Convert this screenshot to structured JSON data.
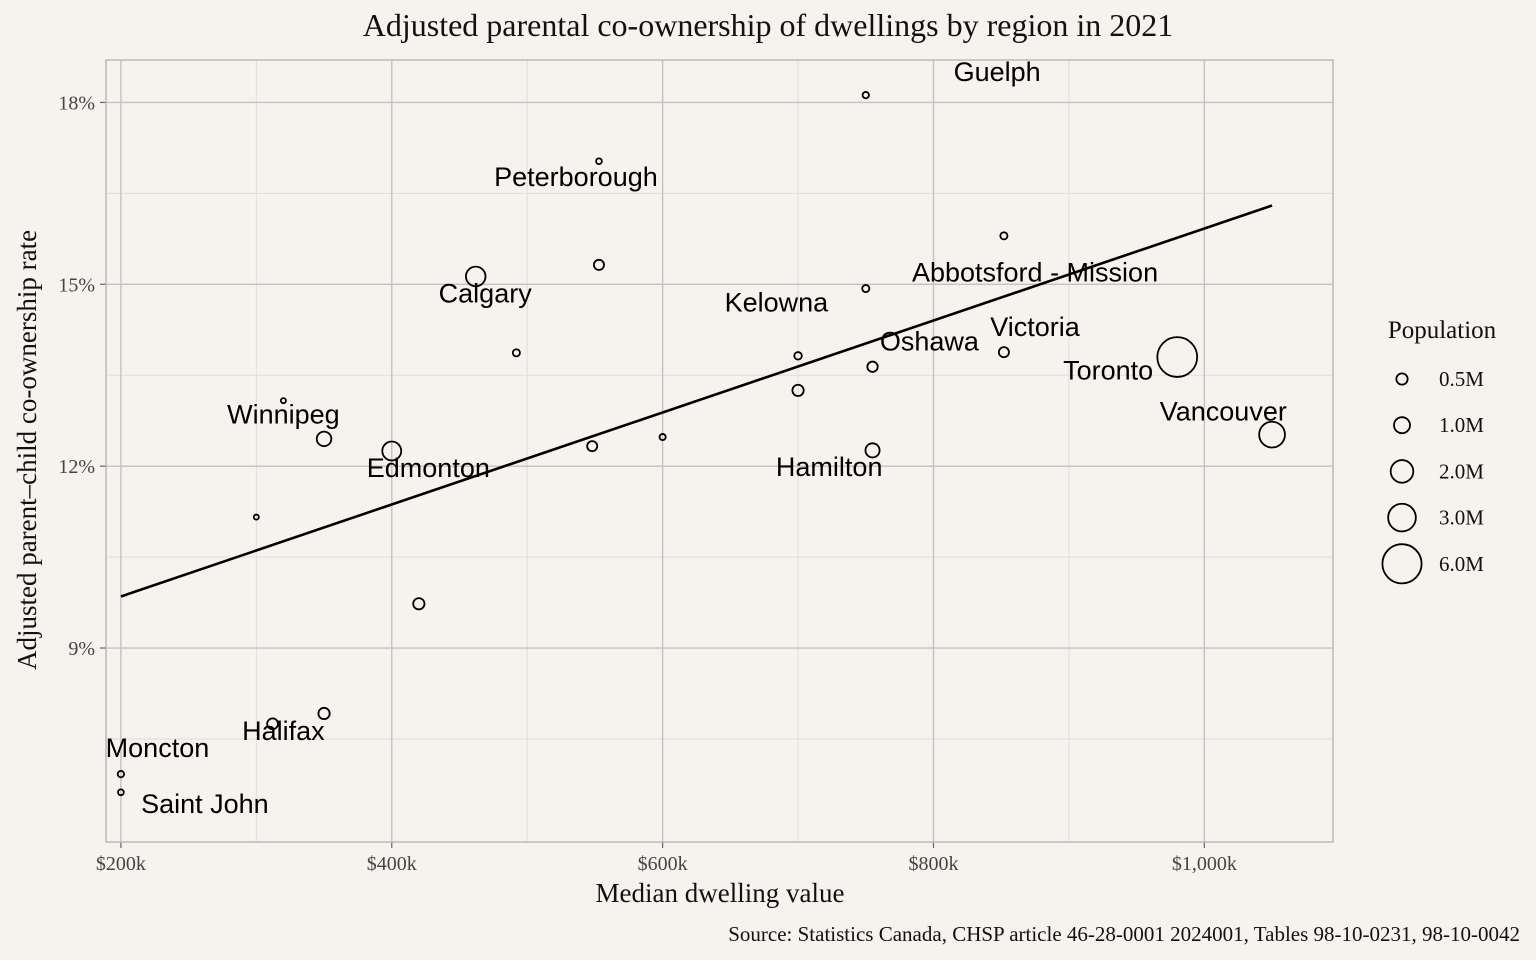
{
  "chart_data": {
    "type": "scatter",
    "title": "Adjusted parental co-ownership of dwellings by region in 2021",
    "xlabel": "Median dwelling value",
    "ylabel": "Adjusted parent–child co-ownership rate",
    "caption": "Source: Statistics Canada, CHSP article 46-28-0001 2024001, Tables 98-10-0231, 98-10-0042",
    "xlim": [
      189000,
      1095000
    ],
    "ylim": [
      5.8,
      18.7
    ],
    "x_ticks": [
      {
        "value": 200000,
        "label": "$200k"
      },
      {
        "value": 400000,
        "label": "$400k"
      },
      {
        "value": 600000,
        "label": "$600k"
      },
      {
        "value": 800000,
        "label": "$800k"
      },
      {
        "value": 1000000,
        "label": "$1,000k"
      }
    ],
    "y_ticks": [
      {
        "value": 9,
        "label": "9%"
      },
      {
        "value": 12,
        "label": "12%"
      },
      {
        "value": 15,
        "label": "15%"
      },
      {
        "value": 18,
        "label": "18%"
      }
    ],
    "grid": true,
    "legend": {
      "title": "Population",
      "position": "right",
      "entries": [
        {
          "label": "0.5M",
          "value": 0.5
        },
        {
          "label": "1.0M",
          "value": 1.0
        },
        {
          "label": "2.0M",
          "value": 2.0
        },
        {
          "label": "3.0M",
          "value": 3.0
        },
        {
          "label": "6.0M",
          "value": 6.0
        }
      ]
    },
    "trendline": {
      "x": [
        200000,
        1050000
      ],
      "y": [
        9.85,
        16.3
      ]
    },
    "points": [
      {
        "name": "Guelph",
        "x": 750000,
        "y": 18.12,
        "pop": 0.16
      },
      {
        "name": "Peterborough",
        "x": 553000,
        "y": 17.03,
        "pop": 0.13
      },
      {
        "name": "",
        "x": 852000,
        "y": 15.8,
        "pop": 0.2
      },
      {
        "name": "Abbotsford - Mission",
        "x": 750000,
        "y": 14.93,
        "pop": 0.2
      },
      {
        "name": "Calgary",
        "x": 462000,
        "y": 15.13,
        "pop": 1.5
      },
      {
        "name": "",
        "x": 553000,
        "y": 15.32,
        "pop": 0.4
      },
      {
        "name": "Kelowna",
        "x": 700000,
        "y": 13.82,
        "pop": 0.22
      },
      {
        "name": "",
        "x": 492000,
        "y": 13.87,
        "pop": 0.2
      },
      {
        "name": "Oshawa",
        "x": 755000,
        "y": 13.64,
        "pop": 0.42
      },
      {
        "name": "Victoria",
        "x": 852000,
        "y": 13.88,
        "pop": 0.4
      },
      {
        "name": "Toronto",
        "x": 980000,
        "y": 13.8,
        "pop": 6.2
      },
      {
        "name": "",
        "x": 700000,
        "y": 13.25,
        "pop": 0.5
      },
      {
        "name": "",
        "x": 320000,
        "y": 13.08,
        "pop": 0.1
      },
      {
        "name": "Winnipeg",
        "x": 350000,
        "y": 12.45,
        "pop": 0.83
      },
      {
        "name": "Edmonton",
        "x": 400000,
        "y": 12.25,
        "pop": 1.4
      },
      {
        "name": "",
        "x": 548000,
        "y": 12.33,
        "pop": 0.4
      },
      {
        "name": "",
        "x": 600000,
        "y": 12.48,
        "pop": 0.15
      },
      {
        "name": "Hamilton",
        "x": 755000,
        "y": 12.26,
        "pop": 0.78
      },
      {
        "name": "Vancouver",
        "x": 1050000,
        "y": 12.52,
        "pop": 2.6
      },
      {
        "name": "",
        "x": 300000,
        "y": 11.16,
        "pop": 0.1
      },
      {
        "name": "",
        "x": 420000,
        "y": 9.73,
        "pop": 0.5
      },
      {
        "name": "",
        "x": 350000,
        "y": 7.92,
        "pop": 0.5
      },
      {
        "name": "Halifax",
        "x": 312000,
        "y": 7.75,
        "pop": 0.46
      },
      {
        "name": "Moncton",
        "x": 200000,
        "y": 6.92,
        "pop": 0.16
      },
      {
        "name": "Saint John",
        "x": 200000,
        "y": 6.62,
        "pop": 0.13
      }
    ],
    "labels": [
      {
        "text": "Guelph",
        "x": 847000,
        "y": 18.35,
        "anchor": "middle"
      },
      {
        "text": "Peterborough",
        "x": 536000,
        "y": 16.62,
        "anchor": "middle"
      },
      {
        "text": "Abbotsford - Mission",
        "x": 875000,
        "y": 15.05,
        "anchor": "middle"
      },
      {
        "text": "Calgary",
        "x": 469000,
        "y": 14.7,
        "anchor": "middle"
      },
      {
        "text": "Kelowna",
        "x": 684000,
        "y": 14.55,
        "anchor": "middle"
      },
      {
        "text": "Oshawa",
        "x": 797000,
        "y": 13.91,
        "anchor": "middle"
      },
      {
        "text": "Victoria",
        "x": 875000,
        "y": 14.15,
        "anchor": "middle"
      },
      {
        "text": "Toronto",
        "x": 929000,
        "y": 13.43,
        "anchor": "middle"
      },
      {
        "text": "Winnipeg",
        "x": 320000,
        "y": 12.7,
        "anchor": "middle"
      },
      {
        "text": "Edmonton",
        "x": 427000,
        "y": 11.82,
        "anchor": "middle"
      },
      {
        "text": "Vancouver",
        "x": 1014000,
        "y": 12.75,
        "anchor": "middle"
      },
      {
        "text": "Hamilton",
        "x": 723000,
        "y": 11.84,
        "anchor": "middle"
      },
      {
        "text": "Halifax",
        "x": 320000,
        "y": 7.48,
        "anchor": "middle"
      },
      {
        "text": "Moncton",
        "x": 227000,
        "y": 7.2,
        "anchor": "middle"
      },
      {
        "text": "Saint John",
        "x": 262000,
        "y": 6.28,
        "anchor": "middle"
      }
    ]
  }
}
